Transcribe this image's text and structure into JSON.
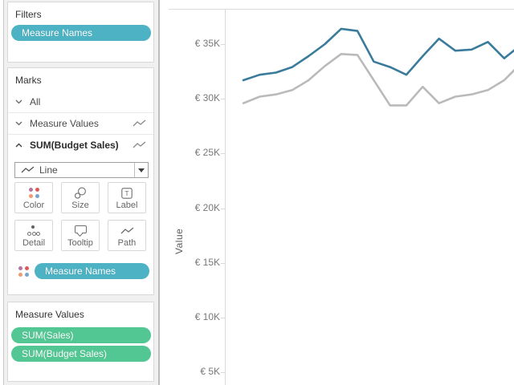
{
  "app": "Tableau worksheet",
  "colors": {
    "pill_teal": "#4cb2c4",
    "pill_green": "#53c793",
    "line_blue": "#3a7b9c",
    "line_gray": "#bababd",
    "sidebar_bg": "#f0f0f1"
  },
  "filters_card": {
    "title": "Filters",
    "pills": [
      {
        "label": "Measure Names",
        "color": "teal"
      }
    ]
  },
  "marks_card": {
    "title": "Marks",
    "rows": [
      {
        "label": "All",
        "chevron": "down",
        "bold": false,
        "has_line_icon": false
      },
      {
        "label": "Measure Values",
        "chevron": "down",
        "bold": false,
        "has_line_icon": true
      },
      {
        "label": "SUM(Budget Sales)",
        "chevron": "up",
        "bold": true,
        "has_line_icon": true
      }
    ],
    "mark_type_dropdown": {
      "value": "Line",
      "icon": "line-zigzag-icon"
    },
    "buttons": [
      {
        "label": "Color",
        "icon": "color-dots-icon"
      },
      {
        "label": "Size",
        "icon": "size-circles-icon"
      },
      {
        "label": "Label",
        "icon": "label-t-icon"
      },
      {
        "label": "Detail",
        "icon": "detail-dots-icon"
      },
      {
        "label": "Tooltip",
        "icon": "tooltip-bubble-icon"
      },
      {
        "label": "Path",
        "icon": "path-line-icon"
      }
    ],
    "shelf_pills": [
      {
        "icon": "color-dots-icon",
        "label": "Measure Names",
        "color": "teal"
      }
    ]
  },
  "measure_values_card": {
    "title": "Measure Values",
    "pills": [
      {
        "label": "SUM(Sales)",
        "color": "green"
      },
      {
        "label": "SUM(Budget Sales)",
        "color": "green"
      }
    ]
  },
  "chart_data": {
    "type": "line",
    "ylabel": "Value",
    "y_ticks": [
      {
        "label": "€ 35K",
        "value": 35
      },
      {
        "label": "€ 30K",
        "value": 30
      },
      {
        "label": "€ 25K",
        "value": 25
      },
      {
        "label": "€ 20K",
        "value": 20
      },
      {
        "label": "€ 15K",
        "value": 15
      },
      {
        "label": "€ 10K",
        "value": 10
      },
      {
        "label": "€ 5K",
        "value": 5
      }
    ],
    "y_unit": "thousands of euros",
    "ylim_visible": [
      4,
      38
    ],
    "x_axis_visible": false,
    "x_points_visible": 18,
    "note": "continuous x-axis (months), rightmost point clipped by viewport; no gridlines; no legend shown",
    "series": [
      {
        "name": "SUM(Sales)",
        "color": "#3a7b9c",
        "values_k": [
          31.7,
          32.2,
          32.4,
          32.9,
          33.9,
          35.0,
          36.4,
          36.2,
          33.4,
          32.9,
          32.2,
          33.9,
          35.5,
          34.4,
          34.5,
          35.2,
          33.7,
          34.9
        ]
      },
      {
        "name": "SUM(Budget Sales)",
        "color": "#bababd",
        "values_k": [
          29.6,
          30.2,
          30.4,
          30.8,
          31.7,
          33.0,
          34.1,
          34.0,
          31.7,
          29.4,
          29.4,
          31.1,
          29.6,
          30.2,
          30.4,
          30.8,
          31.7,
          33.2
        ]
      }
    ]
  }
}
